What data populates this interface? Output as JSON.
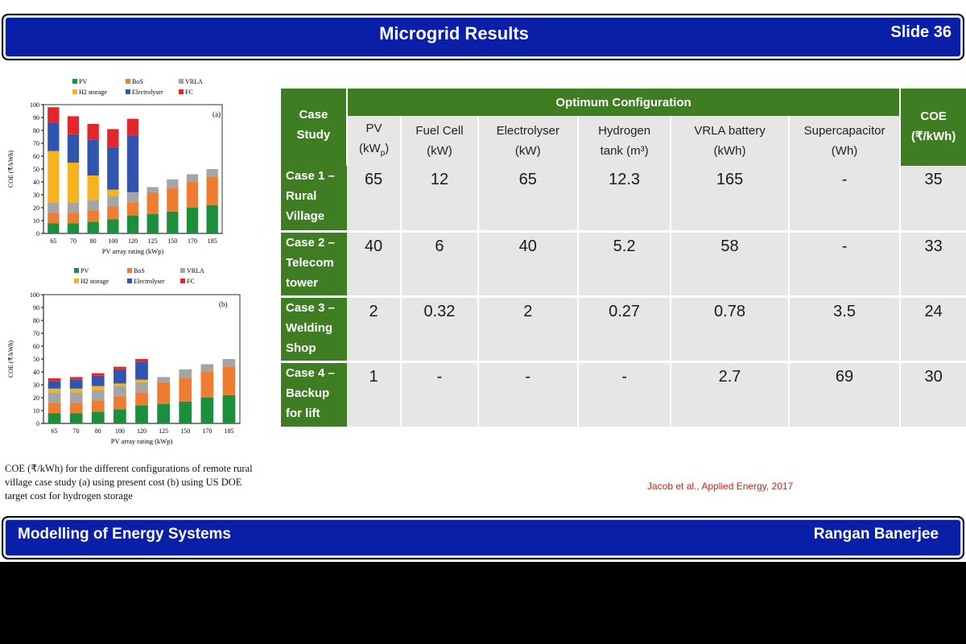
{
  "header": {
    "title": "Microgrid Results",
    "slide": "Slide 36"
  },
  "footer": {
    "left": "Modelling of Energy Systems",
    "right": "Rangan Banerjee"
  },
  "table": {
    "case_study_header": [
      "Case",
      "Study"
    ],
    "group_header": "Optimum Configuration",
    "coe_header": [
      "COE",
      "(₹/kWh)"
    ],
    "columns": [
      {
        "line1": "PV",
        "line2": "(kWp)"
      },
      {
        "line1": "Fuel Cell",
        "line2": "(kW)"
      },
      {
        "line1": "Electrolyser",
        "line2": "(kW)"
      },
      {
        "line1": "Hydrogen",
        "line2": "tank (m³)"
      },
      {
        "line1": "VRLA battery",
        "line2": "(kWh)"
      },
      {
        "line1": "Supercapacitor",
        "line2": "(Wh)"
      }
    ],
    "rows": [
      {
        "case": [
          "Case 1 –",
          "Rural",
          "Village"
        ],
        "values": [
          "65",
          "12",
          "65",
          "12.3",
          "165",
          "-"
        ],
        "coe": "35"
      },
      {
        "case": [
          "Case 2 –",
          "Telecom",
          "tower"
        ],
        "values": [
          "40",
          "6",
          "40",
          "5.2",
          "58",
          "-"
        ],
        "coe": "33"
      },
      {
        "case": [
          "Case 3 –",
          "Welding",
          "Shop"
        ],
        "values": [
          "2",
          "0.32",
          "2",
          "0.27",
          "0.78",
          "3.5"
        ],
        "coe": "24"
      },
      {
        "case": [
          "Case 4 –",
          "Backup",
          "for lift"
        ],
        "values": [
          "1",
          "-",
          "-",
          "-",
          "2.7",
          "69"
        ],
        "coe": "30"
      }
    ]
  },
  "caption": [
    "COE (₹/kWh) for the different configurations of remote rural",
    "village case study (a) using present cost (b) using US DOE",
    "target cost for hydrogen storage"
  ],
  "citation": "Jacob et al., Applied Energy, 2017",
  "chart_data": [
    {
      "type": "bar",
      "stacked": true,
      "panel_label": "(a)",
      "categories": [
        "65",
        "70",
        "80",
        "100",
        "120",
        "125",
        "150",
        "170",
        "185"
      ],
      "xlabel": "PV array rating (kWp)",
      "ylabel": "COE (₹/kWh)",
      "ylim": [
        0,
        100
      ],
      "yticks": [
        0,
        10,
        20,
        30,
        40,
        50,
        60,
        70,
        80,
        90,
        100
      ],
      "legend": [
        "PV",
        "BoS",
        "VRLA",
        "H2 storage",
        "Electrolyser",
        "FC"
      ],
      "colors": {
        "PV": "#1a8f3c",
        "BoS": "#ee7d31",
        "VRLA": "#a5a5a5",
        "H2 storage": "#f7b21e",
        "Electrolyser": "#2f55b0",
        "FC": "#e4262b"
      },
      "series": [
        {
          "name": "PV",
          "values": [
            8,
            8,
            9,
            11,
            14,
            15,
            17,
            20,
            22
          ]
        },
        {
          "name": "BoS",
          "values": [
            8,
            8,
            9,
            10,
            10,
            17,
            18,
            20,
            22
          ]
        },
        {
          "name": "VRLA",
          "values": [
            8,
            8,
            8,
            8,
            8,
            4,
            7,
            6,
            6
          ]
        },
        {
          "name": "H2 storage",
          "values": [
            40,
            31,
            19,
            5,
            0,
            0,
            0,
            0,
            0
          ]
        },
        {
          "name": "Electrolyser",
          "values": [
            22,
            22,
            28,
            33,
            44,
            0,
            0,
            0,
            0
          ]
        },
        {
          "name": "FC",
          "values": [
            12,
            14,
            12,
            14,
            13,
            0,
            0,
            0,
            0
          ]
        }
      ]
    },
    {
      "type": "bar",
      "stacked": true,
      "panel_label": "(b)",
      "categories": [
        "65",
        "70",
        "80",
        "100",
        "120",
        "125",
        "150",
        "170",
        "185"
      ],
      "xlabel": "PV array rating (kWp)",
      "ylabel": "COE (₹/kWh)",
      "ylim": [
        0,
        100
      ],
      "yticks": [
        0,
        10,
        20,
        30,
        40,
        50,
        60,
        70,
        80,
        90,
        100
      ],
      "legend": [
        "PV",
        "BoS",
        "VRLA",
        "H2 storage",
        "Electrolyser",
        "FC"
      ],
      "colors": {
        "PV": "#1a8f3c",
        "BoS": "#ee7d31",
        "VRLA": "#a5a5a5",
        "H2 storage": "#f7b21e",
        "Electrolyser": "#2f55b0",
        "FC": "#e4262b"
      },
      "series": [
        {
          "name": "PV",
          "values": [
            8,
            8,
            9,
            11,
            14,
            15,
            17,
            20,
            22
          ]
        },
        {
          "name": "BoS",
          "values": [
            8,
            8,
            9,
            10,
            10,
            17,
            18,
            20,
            22
          ]
        },
        {
          "name": "VRLA",
          "values": [
            8,
            8,
            8,
            8,
            8,
            4,
            7,
            6,
            6
          ]
        },
        {
          "name": "H2 storage",
          "values": [
            3,
            3,
            3,
            2,
            2,
            0,
            0,
            0,
            0
          ]
        },
        {
          "name": "Electrolyser",
          "values": [
            6,
            7,
            8,
            11,
            14,
            0,
            0,
            0,
            0
          ]
        },
        {
          "name": "FC",
          "values": [
            2,
            2,
            2,
            2,
            2,
            0,
            0,
            0,
            0
          ]
        }
      ]
    }
  ]
}
